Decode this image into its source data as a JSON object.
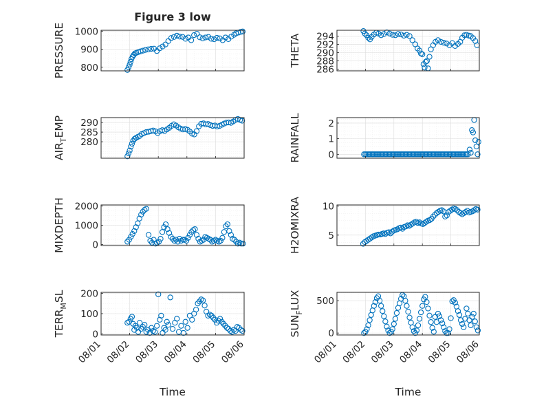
{
  "chart_data": [
    {
      "type": "scatter",
      "title": "Figure 3 low",
      "ylabel": "PRESSURE",
      "xlabel": "",
      "xlim": [
        0,
        5
      ],
      "ylim": [
        780,
        1005
      ],
      "yticks": [
        800,
        900,
        1000
      ],
      "ytick_labels": [
        "800",
        "900",
        "1000"
      ],
      "x": [
        0.92,
        0.96,
        1.0,
        1.03,
        1.06,
        1.1,
        1.14,
        1.18,
        1.23,
        1.3,
        1.38,
        1.46,
        1.55,
        1.65,
        1.75,
        1.85,
        1.95,
        2.05,
        2.15,
        2.25,
        2.35,
        2.45,
        2.55,
        2.65,
        2.75,
        2.85,
        2.95,
        3.05,
        3.15,
        3.25,
        3.35,
        3.45,
        3.55,
        3.65,
        3.75,
        3.85,
        3.95,
        4.05,
        4.15,
        4.25,
        4.35,
        4.45,
        4.55,
        4.65,
        4.72,
        4.8,
        4.88,
        4.95
      ],
      "y": [
        785,
        800,
        815,
        830,
        845,
        858,
        868,
        876,
        880,
        884,
        888,
        892,
        896,
        899,
        902,
        903,
        890,
        905,
        915,
        926,
        945,
        962,
        968,
        975,
        970,
        968,
        958,
        965,
        950,
        978,
        985,
        966,
        960,
        965,
        968,
        958,
        955,
        963,
        960,
        950,
        965,
        956,
        970,
        980,
        988,
        992,
        996,
        998
      ]
    },
    {
      "type": "scatter",
      "title": "",
      "ylabel": "THETA",
      "xlabel": "",
      "xlim": [
        0,
        5
      ],
      "ylim": [
        285.6,
        295.4
      ],
      "yticks": [
        286,
        288,
        290,
        292,
        294
      ],
      "ytick_labels": [
        "286",
        "288",
        "290",
        "292",
        "294"
      ],
      "x": [
        0.93,
        0.98,
        1.04,
        1.1,
        1.16,
        1.22,
        1.3,
        1.38,
        1.46,
        1.55,
        1.65,
        1.75,
        1.85,
        1.95,
        2.05,
        2.15,
        2.25,
        2.35,
        2.45,
        2.55,
        2.65,
        2.75,
        2.83,
        2.9,
        2.95,
        3.0,
        3.04,
        3.08,
        3.12,
        3.16,
        3.2,
        3.25,
        3.3,
        3.38,
        3.46,
        3.55,
        3.65,
        3.75,
        3.85,
        3.95,
        4.05,
        4.15,
        4.25,
        4.33,
        4.4,
        4.48,
        4.55,
        4.63,
        4.7,
        4.78,
        4.86,
        4.92
      ],
      "y": [
        295.2,
        294.6,
        294.2,
        293.6,
        293.2,
        293.8,
        294.4,
        294.8,
        294.6,
        294.2,
        294.5,
        294.9,
        294.6,
        294.3,
        294.2,
        294.5,
        294.4,
        294.1,
        294.3,
        294.0,
        293.0,
        292.0,
        291.0,
        290.5,
        289.8,
        289.6,
        287.2,
        286.4,
        287.8,
        288.0,
        286.2,
        289.0,
        290.8,
        291.8,
        292.6,
        293.0,
        292.6,
        292.4,
        292.2,
        291.8,
        292.3,
        291.6,
        292.1,
        292.6,
        293.6,
        294.2,
        294.3,
        294.1,
        294.0,
        293.5,
        292.8,
        291.8
      ]
    },
    {
      "type": "scatter",
      "title": "",
      "ylabel": "AIR_TEMP",
      "ylabel_parts": [
        "AIR",
        "T",
        "EMP"
      ],
      "xlabel": "",
      "xlim": [
        0,
        5
      ],
      "ylim": [
        271.5,
        292.5
      ],
      "yticks": [
        280,
        285,
        290
      ],
      "ytick_labels": [
        "280",
        "285",
        "290"
      ],
      "x": [
        0.92,
        0.96,
        1.0,
        1.04,
        1.08,
        1.12,
        1.17,
        1.22,
        1.28,
        1.35,
        1.42,
        1.5,
        1.58,
        1.66,
        1.74,
        1.82,
        1.9,
        1.98,
        2.06,
        2.14,
        2.22,
        2.3,
        2.38,
        2.46,
        2.54,
        2.62,
        2.7,
        2.78,
        2.86,
        2.94,
        3.02,
        3.1,
        3.18,
        3.26,
        3.34,
        3.42,
        3.5,
        3.58,
        3.66,
        3.74,
        3.82,
        3.9,
        3.98,
        4.06,
        4.14,
        4.22,
        4.3,
        4.38,
        4.46,
        4.54,
        4.62,
        4.7,
        4.78,
        4.86,
        4.93
      ],
      "y": [
        272.5,
        274.0,
        275.5,
        277.5,
        279.0,
        280.5,
        281.5,
        282.0,
        282.5,
        283.0,
        284.0,
        284.5,
        285.0,
        285.2,
        285.5,
        285.8,
        285.4,
        284.5,
        285.5,
        286.0,
        285.6,
        286.4,
        287.2,
        288.2,
        289.0,
        288.4,
        287.5,
        286.8,
        286.4,
        286.6,
        286.2,
        285.3,
        284.2,
        283.8,
        285.5,
        288.0,
        289.3,
        289.5,
        289.0,
        289.2,
        288.6,
        288.2,
        288.4,
        287.9,
        288.2,
        288.8,
        289.4,
        289.9,
        290.0,
        289.8,
        290.5,
        291.3,
        291.8,
        291.3,
        290.9
      ]
    },
    {
      "type": "scatter",
      "title": "",
      "ylabel": "RAINFALL",
      "xlabel": "",
      "xlim": [
        0,
        5
      ],
      "ylim": [
        -0.25,
        2.35
      ],
      "yticks": [
        0,
        1,
        2
      ],
      "ytick_labels": [
        "0",
        "1",
        "2"
      ],
      "x": [
        0.95,
        1.0,
        1.05,
        1.1,
        1.15,
        1.2,
        1.25,
        1.3,
        1.35,
        1.4,
        1.45,
        1.5,
        1.55,
        1.6,
        1.65,
        1.7,
        1.75,
        1.8,
        1.85,
        1.9,
        1.95,
        2.0,
        2.05,
        2.1,
        2.15,
        2.2,
        2.25,
        2.3,
        2.35,
        2.4,
        2.45,
        2.5,
        2.55,
        2.6,
        2.65,
        2.7,
        2.75,
        2.8,
        2.85,
        2.9,
        2.95,
        3.0,
        3.05,
        3.1,
        3.15,
        3.2,
        3.25,
        3.3,
        3.35,
        3.4,
        3.45,
        3.5,
        3.55,
        3.6,
        3.65,
        3.7,
        3.75,
        3.8,
        3.85,
        3.9,
        3.95,
        4.0,
        4.05,
        4.1,
        4.15,
        4.2,
        4.25,
        4.3,
        4.35,
        4.4,
        4.45,
        4.5,
        4.55,
        4.6,
        4.66,
        4.7,
        4.74,
        4.78,
        4.82,
        4.86,
        4.9,
        4.94,
        4.97
      ],
      "y": [
        0,
        0,
        0,
        0,
        0,
        0,
        0,
        0,
        0,
        0,
        0,
        0,
        0,
        0,
        0,
        0,
        0,
        0,
        0,
        0,
        0,
        0,
        0,
        0,
        0,
        0,
        0,
        0,
        0,
        0,
        0,
        0,
        0,
        0,
        0,
        0,
        0,
        0,
        0,
        0,
        0,
        0,
        0,
        0,
        0,
        0,
        0,
        0,
        0,
        0,
        0,
        0,
        0,
        0,
        0,
        0,
        0,
        0,
        0,
        0,
        0,
        0,
        0,
        0,
        0,
        0,
        0,
        0,
        0,
        0,
        0,
        0,
        0,
        0,
        0.3,
        0.1,
        1.55,
        1.4,
        2.2,
        0.9,
        0.5,
        0,
        0.8
      ]
    },
    {
      "type": "scatter",
      "title": "",
      "ylabel": "MIXDEPTH",
      "xlabel": "",
      "xlim": [
        0,
        5
      ],
      "ylim": [
        -50,
        2050
      ],
      "yticks": [
        0,
        1000,
        2000
      ],
      "ytick_labels": [
        "0",
        "1000",
        "2000"
      ],
      "x": [
        0.92,
        0.98,
        1.04,
        1.1,
        1.16,
        1.22,
        1.28,
        1.34,
        1.4,
        1.46,
        1.52,
        1.58,
        1.66,
        1.72,
        1.78,
        1.84,
        1.9,
        1.96,
        2.02,
        2.08,
        2.14,
        2.2,
        2.26,
        2.32,
        2.38,
        2.44,
        2.5,
        2.56,
        2.62,
        2.68,
        2.74,
        2.8,
        2.86,
        2.92,
        2.98,
        3.04,
        3.1,
        3.16,
        3.22,
        3.28,
        3.34,
        3.4,
        3.46,
        3.52,
        3.58,
        3.64,
        3.7,
        3.76,
        3.82,
        3.88,
        3.94,
        4.0,
        4.06,
        4.12,
        4.18,
        4.24,
        4.3,
        4.36,
        4.42,
        4.48,
        4.54,
        4.6,
        4.66,
        4.72,
        4.78,
        4.84,
        4.9,
        4.96
      ],
      "y": [
        150,
        250,
        400,
        550,
        700,
        900,
        1100,
        1350,
        1550,
        1700,
        1800,
        1850,
        500,
        200,
        100,
        250,
        50,
        100,
        150,
        300,
        650,
        900,
        1050,
        800,
        600,
        400,
        300,
        200,
        250,
        150,
        300,
        200,
        250,
        250,
        200,
        350,
        500,
        650,
        750,
        800,
        500,
        300,
        150,
        200,
        250,
        400,
        350,
        300,
        250,
        150,
        200,
        250,
        200,
        150,
        200,
        350,
        650,
        950,
        1050,
        700,
        500,
        300,
        250,
        150,
        50,
        100,
        50,
        50
      ]
    },
    {
      "type": "scatter",
      "title": "",
      "ylabel": "H2OMIXRA",
      "xlabel": "",
      "xlim": [
        0,
        5
      ],
      "ylim": [
        3.2,
        10.2
      ],
      "yticks": [
        5,
        10
      ],
      "ytick_labels": [
        "5",
        "10"
      ],
      "x": [
        0.92,
        0.98,
        1.04,
        1.1,
        1.16,
        1.22,
        1.28,
        1.34,
        1.4,
        1.46,
        1.52,
        1.58,
        1.64,
        1.7,
        1.76,
        1.82,
        1.88,
        1.94,
        2.0,
        2.06,
        2.12,
        2.18,
        2.24,
        2.3,
        2.36,
        2.42,
        2.48,
        2.54,
        2.6,
        2.66,
        2.72,
        2.78,
        2.84,
        2.9,
        2.96,
        3.02,
        3.08,
        3.14,
        3.2,
        3.26,
        3.32,
        3.38,
        3.44,
        3.5,
        3.56,
        3.62,
        3.68,
        3.74,
        3.8,
        3.86,
        3.92,
        3.98,
        4.04,
        4.1,
        4.16,
        4.22,
        4.28,
        4.34,
        4.4,
        4.46,
        4.52,
        4.58,
        4.64,
        4.7,
        4.76,
        4.82,
        4.88,
        4.94
      ],
      "y": [
        3.5,
        3.8,
        4.0,
        4.2,
        4.4,
        4.6,
        4.8,
        4.9,
        5.0,
        5.1,
        5.1,
        5.2,
        5.3,
        5.2,
        5.4,
        5.5,
        5.3,
        5.6,
        5.8,
        5.9,
        6.0,
        6.2,
        6.3,
        6.1,
        6.4,
        6.5,
        6.7,
        6.6,
        6.8,
        7.0,
        7.2,
        7.3,
        7.1,
        7.2,
        7.0,
        6.9,
        7.1,
        7.3,
        7.5,
        7.6,
        7.8,
        8.2,
        8.5,
        8.8,
        9.0,
        9.2,
        9.3,
        9.1,
        8.2,
        8.4,
        9.0,
        9.2,
        9.4,
        9.6,
        9.5,
        9.3,
        9.0,
        8.8,
        8.6,
        8.8,
        9.0,
        9.2,
        8.9,
        9.0,
        9.1,
        9.3,
        9.5,
        9.4
      ]
    },
    {
      "type": "scatter",
      "title": "",
      "ylabel": "TERR_MSL",
      "ylabel_parts": [
        "TERR",
        "M",
        "SL"
      ],
      "xlabel": "Time",
      "xlim": [
        0,
        5
      ],
      "ylim": [
        -5,
        205
      ],
      "yticks": [
        0,
        100,
        200
      ],
      "ytick_labels": [
        "0",
        "100",
        "200"
      ],
      "xticks": [
        0,
        1,
        2,
        3,
        4,
        5
      ],
      "xtick_labels": [
        "08/01",
        "08/02",
        "08/03",
        "08/04",
        "08/05",
        "08/06"
      ],
      "x": [
        0.92,
        0.98,
        1.03,
        1.08,
        1.12,
        1.16,
        1.2,
        1.25,
        1.3,
        1.35,
        1.4,
        1.46,
        1.52,
        1.58,
        1.64,
        1.7,
        1.76,
        1.82,
        1.88,
        1.95,
        2.0,
        2.05,
        2.1,
        2.15,
        2.2,
        2.25,
        2.3,
        2.35,
        2.42,
        2.5,
        2.58,
        2.65,
        2.72,
        2.8,
        2.88,
        2.95,
        3.02,
        3.1,
        3.18,
        3.25,
        3.32,
        3.38,
        3.44,
        3.5,
        3.56,
        3.62,
        3.68,
        3.74,
        3.8,
        3.86,
        3.92,
        3.98,
        4.04,
        4.1,
        4.16,
        4.22,
        4.28,
        4.34,
        4.4,
        4.46,
        4.52,
        4.58,
        4.64,
        4.7,
        4.76,
        4.82,
        4.88,
        4.94
      ],
      "y": [
        55,
        60,
        75,
        85,
        50,
        20,
        40,
        30,
        10,
        55,
        25,
        35,
        45,
        10,
        20,
        5,
        30,
        15,
        10,
        40,
        195,
        70,
        90,
        5,
        30,
        20,
        60,
        45,
        180,
        25,
        55,
        75,
        10,
        40,
        5,
        60,
        30,
        90,
        70,
        100,
        120,
        150,
        160,
        170,
        165,
        140,
        110,
        90,
        95,
        90,
        80,
        70,
        55,
        65,
        75,
        60,
        50,
        40,
        30,
        25,
        15,
        10,
        20,
        15,
        35,
        30,
        20,
        15
      ]
    },
    {
      "type": "scatter",
      "title": "",
      "ylabel": "SUN_FLUX",
      "ylabel_parts": [
        "SUN",
        "F",
        "LUX"
      ],
      "xlabel": "Time",
      "xlim": [
        0,
        5
      ],
      "ylim": [
        -30,
        630
      ],
      "yticks": [
        0,
        500
      ],
      "ytick_labels": [
        "0",
        "500"
      ],
      "xticks": [
        0,
        1,
        2,
        3,
        4,
        5
      ],
      "xtick_labels": [
        "08/01",
        "08/02",
        "08/03",
        "08/04",
        "08/05",
        "08/06"
      ],
      "x": [
        0.95,
        1.0,
        1.05,
        1.1,
        1.15,
        1.2,
        1.25,
        1.3,
        1.35,
        1.4,
        1.45,
        1.5,
        1.55,
        1.6,
        1.65,
        1.7,
        1.75,
        1.8,
        1.85,
        1.9,
        1.95,
        2.0,
        2.05,
        2.1,
        2.15,
        2.2,
        2.25,
        2.3,
        2.35,
        2.4,
        2.45,
        2.5,
        2.55,
        2.6,
        2.65,
        2.7,
        2.75,
        2.8,
        2.85,
        2.9,
        2.95,
        3.0,
        3.05,
        3.1,
        3.15,
        3.2,
        3.25,
        3.3,
        3.35,
        3.4,
        3.45,
        3.5,
        3.55,
        3.6,
        3.65,
        3.7,
        3.75,
        3.8,
        3.85,
        3.9,
        3.95,
        4.0,
        4.05,
        4.1,
        4.15,
        4.2,
        4.25,
        4.3,
        4.35,
        4.4,
        4.45,
        4.5,
        4.55,
        4.6,
        4.65,
        4.7,
        4.75,
        4.8,
        4.85,
        4.9,
        4.95
      ],
      "y": [
        0,
        20,
        60,
        120,
        200,
        280,
        350,
        420,
        480,
        540,
        570,
        500,
        420,
        340,
        260,
        180,
        100,
        40,
        0,
        20,
        60,
        140,
        220,
        310,
        390,
        460,
        530,
        590,
        570,
        500,
        420,
        330,
        240,
        160,
        90,
        30,
        0,
        40,
        120,
        220,
        320,
        420,
        520,
        560,
        480,
        380,
        270,
        170,
        80,
        20,
        250,
        170,
        300,
        260,
        200,
        150,
        90,
        30,
        0,
        0,
        60,
        230,
        490,
        510,
        470,
        410,
        340,
        280,
        200,
        140,
        90,
        220,
        380,
        300,
        200,
        120,
        250,
        300,
        180,
        90,
        40
      ]
    }
  ]
}
